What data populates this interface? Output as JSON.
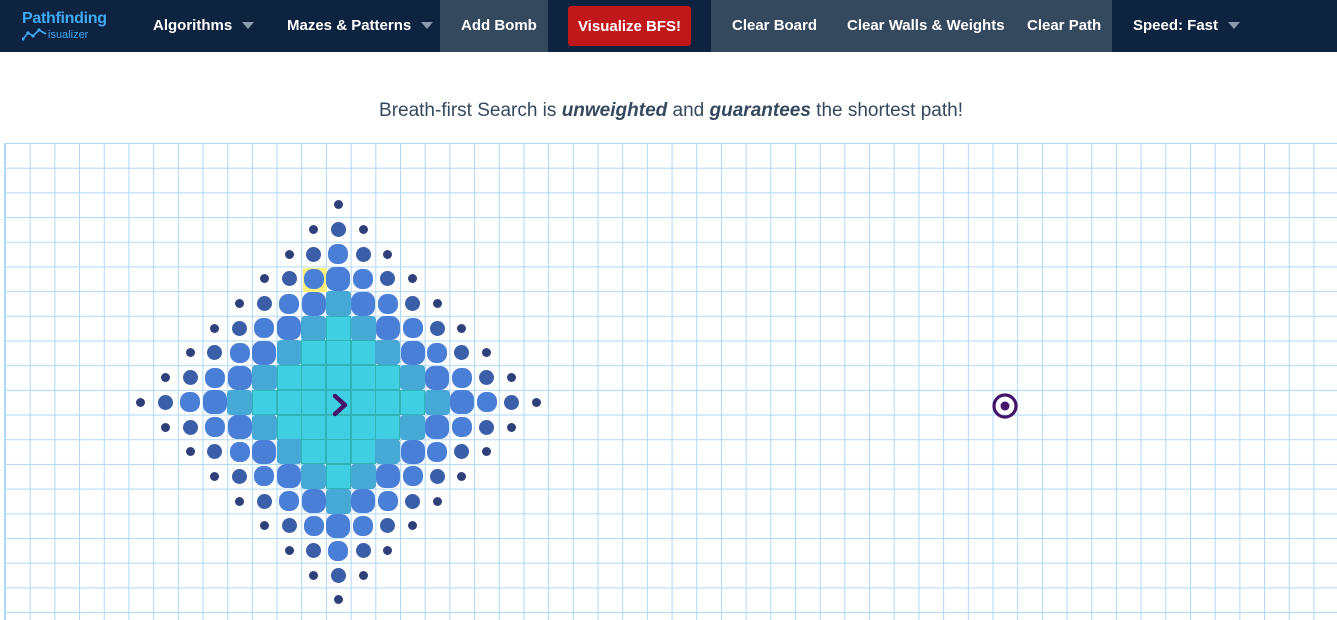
{
  "navbar": {
    "logo_main": "Pathfinding",
    "logo_sub": "isualizer",
    "algorithms_label": "Algorithms",
    "mazes_label": "Mazes & Patterns",
    "add_bomb_label": "Add Bomb",
    "visualize_label": "Visualize BFS!",
    "clear_board_label": "Clear Board",
    "clear_walls_label": "Clear Walls & Weights",
    "clear_path_label": "Clear Path",
    "speed_label": "Speed: Fast"
  },
  "description": {
    "prefix": "Breath-first Search is ",
    "em1": "unweighted",
    "middle": " and ",
    "em2": "guarantees",
    "suffix": " the shortest path!"
  },
  "colors": {
    "navbar_bg": "#0e2340",
    "accent_red": "#c0171b",
    "visited": "#40cee3",
    "frontier": "#4a7fd8",
    "grid_line": "#afd8f8",
    "start_target": "#44136a"
  },
  "icons": {
    "start": "chevron-right-icon",
    "target": "target-icon"
  }
}
